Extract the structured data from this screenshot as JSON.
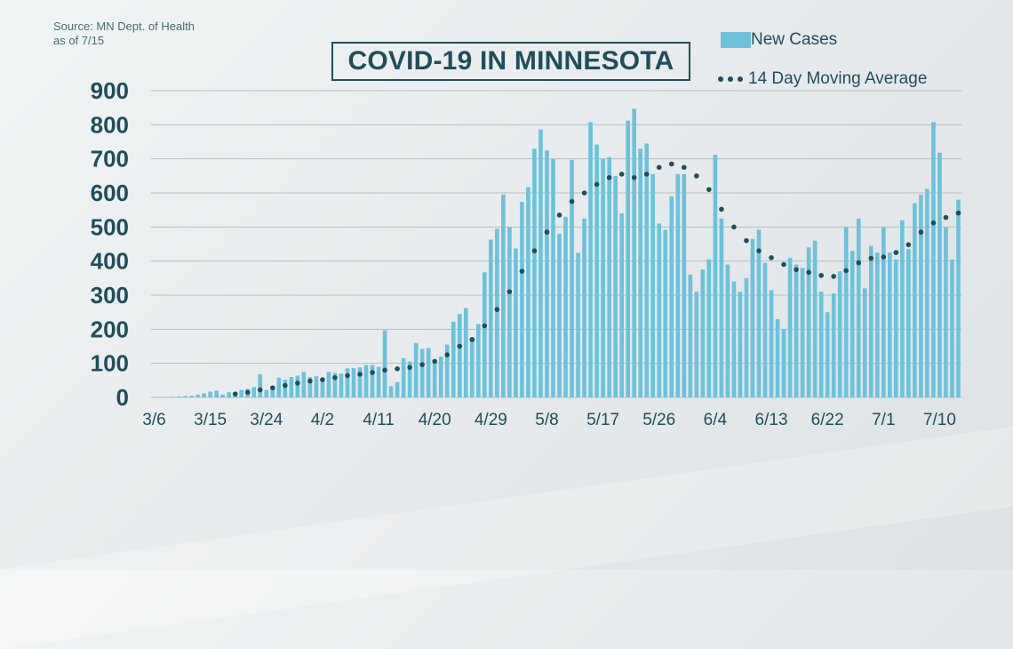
{
  "header": {
    "source_line1": "Source: MN Dept. of Health",
    "source_line2": "as of 7/15",
    "title": "COVID-19 IN MINNESOTA"
  },
  "legend": {
    "bars_label": "New Cases",
    "line_label": "14 Day Moving Average"
  },
  "colors": {
    "bar": "#6cc2dc",
    "line": "#1f4e5a",
    "text": "#1f4e5a",
    "grid": "#b4bec2"
  },
  "chart_data": {
    "type": "bar",
    "title": "COVID-19 IN MINNESOTA",
    "xlabel": "",
    "ylabel": "",
    "ylim": [
      0,
      900
    ],
    "yticks": [
      "0",
      "100",
      "200",
      "300",
      "400",
      "500",
      "600",
      "700",
      "800",
      "900"
    ],
    "xtick_labels": [
      "3/6",
      "3/15",
      "3/24",
      "4/2",
      "4/11",
      "4/20",
      "4/29",
      "5/8",
      "5/17",
      "5/26",
      "6/4",
      "6/13",
      "6/22",
      "7/1",
      "7/10"
    ],
    "start_date": "3/6",
    "end_date": "7/14",
    "series": [
      {
        "name": "New Cases",
        "type": "bar",
        "values": [
          1,
          1,
          1,
          2,
          3,
          4,
          5,
          8,
          12,
          17,
          20,
          8,
          15,
          14,
          22,
          25,
          30,
          68,
          22,
          30,
          58,
          52,
          60,
          64,
          75,
          60,
          62,
          50,
          75,
          72,
          70,
          85,
          86,
          88,
          95,
          95,
          90,
          197,
          33,
          45,
          115,
          105,
          160,
          142,
          145,
          110,
          120,
          155,
          222,
          245,
          262,
          170,
          215,
          367,
          463,
          495,
          595,
          500,
          437,
          574,
          617,
          730,
          786,
          725,
          700,
          480,
          530,
          697,
          424,
          525,
          808,
          742,
          700,
          705,
          650,
          540,
          812,
          847,
          730,
          745,
          655,
          510,
          492,
          590,
          655,
          655,
          360,
          310,
          375,
          405,
          712,
          525,
          390,
          340,
          310,
          350,
          465,
          492,
          395,
          315,
          230,
          200,
          410,
          390,
          380,
          440,
          460,
          310,
          250,
          305,
          370,
          500,
          430,
          525,
          320,
          445,
          425,
          500,
          425,
          405,
          520,
          435,
          570,
          595,
          612,
          808,
          718,
          500,
          405,
          580
        ],
        "description": "Daily new cases, 3/6 through 7/14 (approximate readings)"
      },
      {
        "name": "14 Day Moving Average",
        "type": "line",
        "style": "dotted",
        "values": [
          null,
          null,
          null,
          null,
          null,
          null,
          null,
          null,
          null,
          null,
          null,
          null,
          null,
          10,
          12,
          15,
          18,
          22,
          25,
          28,
          31,
          35,
          38,
          42,
          45,
          48,
          50,
          52,
          55,
          58,
          61,
          64,
          66,
          68,
          70,
          73,
          76,
          80,
          82,
          84,
          86,
          88,
          92,
          96,
          100,
          106,
          115,
          125,
          138,
          150,
          160,
          170,
          188,
          210,
          235,
          258,
          285,
          310,
          340,
          370,
          400,
          430,
          460,
          485,
          510,
          535,
          555,
          575,
          590,
          600,
          612,
          625,
          635,
          645,
          655,
          655,
          650,
          645,
          648,
          655,
          665,
          675,
          682,
          685,
          682,
          675,
          665,
          650,
          630,
          610,
          580,
          552,
          525,
          500,
          480,
          460,
          445,
          430,
          420,
          410,
          400,
          390,
          382,
          375,
          370,
          367,
          363,
          358,
          354,
          355,
          360,
          372,
          383,
          395,
          402,
          408,
          410,
          412,
          418,
          425,
          435,
          448,
          465,
          485,
          500,
          512,
          520,
          528,
          535,
          541
        ]
      }
    ]
  }
}
